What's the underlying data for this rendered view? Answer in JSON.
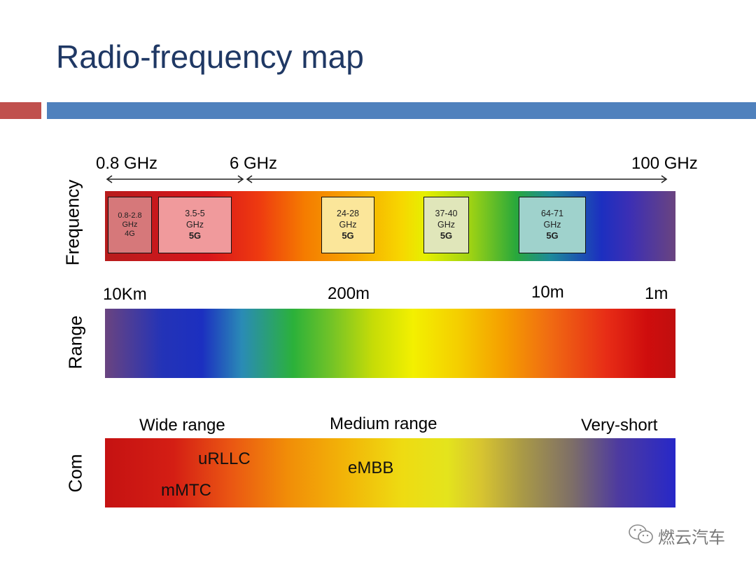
{
  "title": "Radio-frequency map",
  "accent_colors": {
    "red": "#c0504d",
    "blue": "#4f81bd"
  },
  "frequency": {
    "label": "Frequency",
    "ticks": [
      "0.8 GHz",
      "6 GHz",
      "100 GHz"
    ],
    "boxes": [
      {
        "line1": "0.8-2.8",
        "line2": "GHz",
        "line3": "4G"
      },
      {
        "line1": "3.5-5",
        "line2": "GHz",
        "line3": "5G"
      },
      {
        "line1": "24-28",
        "line2": "GHz",
        "line3": "5G"
      },
      {
        "line1": "37-40",
        "line2": "GHz",
        "line3": "5G"
      },
      {
        "line1": "64-71",
        "line2": "GHz",
        "line3": "5G"
      }
    ]
  },
  "range": {
    "label": "Range",
    "ticks": [
      "10Km",
      "200m",
      "10m",
      "1m"
    ]
  },
  "com": {
    "label": "Com",
    "headers": [
      "Wide range",
      "Medium range",
      "Very-short"
    ],
    "items": [
      "uRLLC",
      "mMTC",
      "eMBB"
    ]
  },
  "watermark": {
    "icon": "wechat-icon",
    "text": "燃云汽车"
  }
}
